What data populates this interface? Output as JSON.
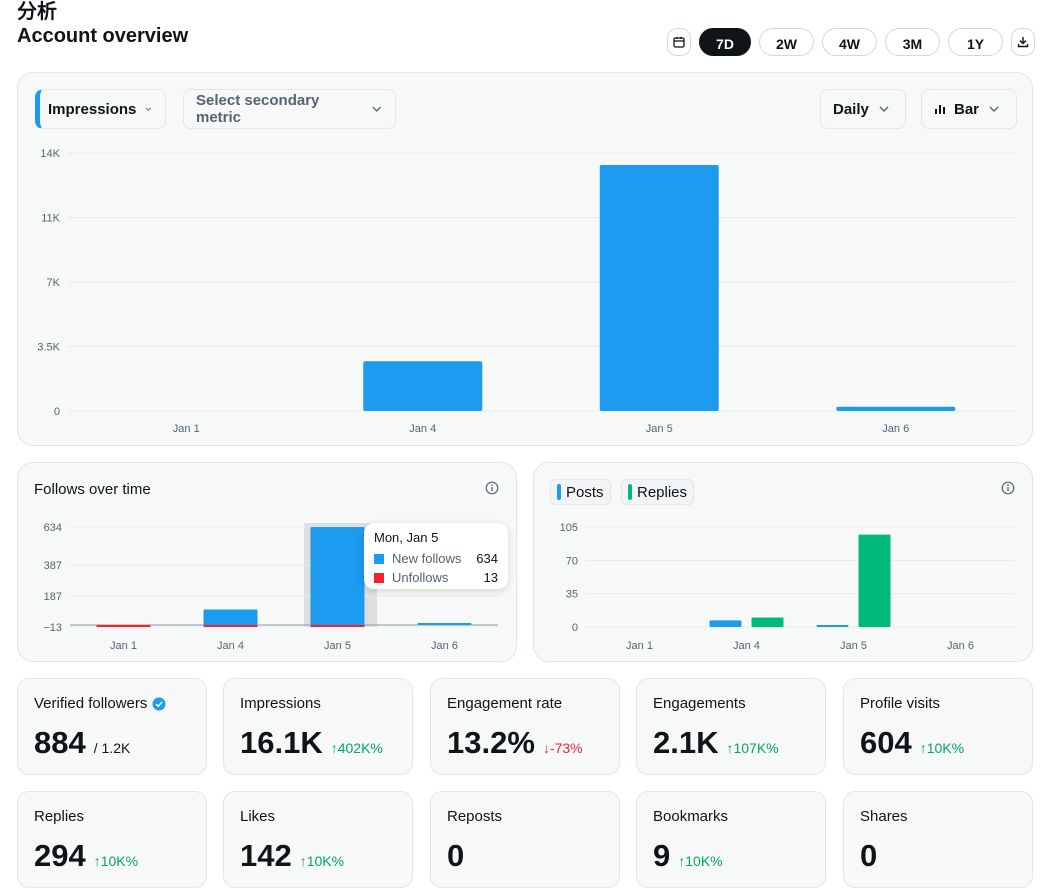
{
  "page": {
    "title": "分析",
    "section_title": "Account overview"
  },
  "range": {
    "options": [
      "7D",
      "2W",
      "4W",
      "3M",
      "1Y"
    ],
    "active": "7D"
  },
  "icons": {
    "calendar": "calendar-icon",
    "download": "download-icon",
    "info": "info-icon",
    "verified": "verified-badge-icon",
    "caret": "chevron-down-icon",
    "bar_chart": "bar-chart-icon"
  },
  "controls": {
    "primary_metric": "Impressions",
    "secondary_metric": "Select secondary metric",
    "interval": "Daily",
    "chart_type": "Bar"
  },
  "colors": {
    "primary": "#1d9bf0",
    "secondary": "#00ba7c",
    "unfollow": "#f4212e"
  },
  "chart_data": [
    {
      "type": "bar",
      "title": "",
      "categories": [
        "Jan 1",
        "Jan 4",
        "Jan 5",
        "Jan 6"
      ],
      "series": [
        {
          "name": "Impressions",
          "values": [
            0,
            2700,
            13350,
            230
          ]
        }
      ],
      "yticks": [
        "0",
        "3.5K",
        "7K",
        "11K",
        "14K"
      ],
      "ytick_values": [
        0,
        3500,
        7000,
        10500,
        14000
      ],
      "ylim": [
        0,
        14000
      ]
    },
    {
      "type": "bar",
      "title": "Follows over time",
      "categories": [
        "Jan 1",
        "Jan 4",
        "Jan 5",
        "Jan 6"
      ],
      "series": [
        {
          "name": "New follows",
          "values": [
            0,
            100,
            634,
            5
          ]
        },
        {
          "name": "Unfollows",
          "values": [
            3,
            1,
            13,
            0
          ]
        }
      ],
      "yticks": [
        "634",
        "387",
        "187",
        "−13"
      ],
      "ytick_values": [
        634,
        387,
        187,
        -13
      ],
      "ylim": [
        -13,
        634
      ],
      "tooltip": {
        "title": "Mon, Jan 5",
        "rows": [
          {
            "name": "New follows",
            "value": "634"
          },
          {
            "name": "Unfollows",
            "value": "13"
          }
        ]
      }
    },
    {
      "type": "bar",
      "title": "",
      "categories": [
        "Jan 1",
        "Jan 4",
        "Jan 5",
        "Jan 6"
      ],
      "series": [
        {
          "name": "Posts",
          "values": [
            0,
            7,
            1,
            0
          ]
        },
        {
          "name": "Replies",
          "values": [
            0,
            10,
            97,
            0
          ]
        }
      ],
      "yticks": [
        "105",
        "70",
        "35",
        "0"
      ],
      "ytick_values": [
        105,
        70,
        35,
        0
      ],
      "ylim": [
        0,
        105
      ]
    }
  ],
  "metrics": [
    {
      "label": "Verified followers",
      "value": "884",
      "sub": "/ 1.2K",
      "verified": true
    },
    {
      "label": "Impressions",
      "value": "16.1K",
      "delta": "402K%",
      "dir": "up"
    },
    {
      "label": "Engagement rate",
      "value": "13.2%",
      "delta": "-73%",
      "dir": "down"
    },
    {
      "label": "Engagements",
      "value": "2.1K",
      "delta": "107K%",
      "dir": "up"
    },
    {
      "label": "Profile visits",
      "value": "604",
      "delta": "10K%",
      "dir": "up"
    },
    {
      "label": "Replies",
      "value": "294",
      "delta": "10K%",
      "dir": "up"
    },
    {
      "label": "Likes",
      "value": "142",
      "delta": "10K%",
      "dir": "up"
    },
    {
      "label": "Reposts",
      "value": "0"
    },
    {
      "label": "Bookmarks",
      "value": "9",
      "delta": "10K%",
      "dir": "up"
    },
    {
      "label": "Shares",
      "value": "0"
    }
  ]
}
